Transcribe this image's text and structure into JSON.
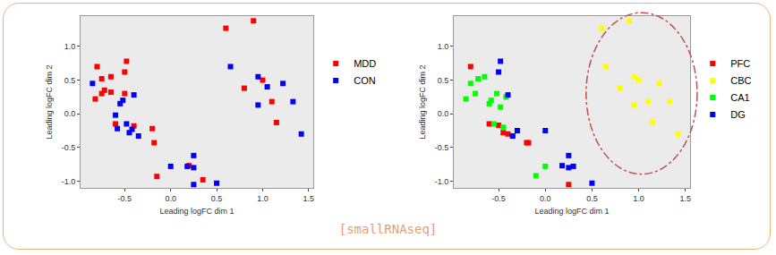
{
  "chart_data": [
    {
      "type": "scatter",
      "x_label": "Leading logFC dim 1",
      "y_label": "Leading logFC dim 2",
      "xlim": [
        -0.98,
        1.55
      ],
      "ylim": [
        -1.1,
        1.45
      ],
      "xticks": [
        {
          "value": -0.5,
          "label": "-0.5"
        },
        {
          "value": 0,
          "label": "0.0"
        },
        {
          "value": 0.5,
          "label": "0.5"
        },
        {
          "value": 1,
          "label": "1.0"
        },
        {
          "value": 1.5,
          "label": "1.5"
        }
      ],
      "yticks": [
        {
          "value": -1,
          "label": "-1.0"
        },
        {
          "value": -0.5,
          "label": "-0.5"
        },
        {
          "value": 0,
          "label": "0.0"
        },
        {
          "value": 0.5,
          "label": "0.5"
        },
        {
          "value": 1,
          "label": "1.0"
        }
      ],
      "grid": false,
      "legend": "right",
      "marker": "square",
      "series": [
        {
          "name": "MDD",
          "color": "#ff0000",
          "x": [
            -0.8,
            -0.82,
            -0.75,
            -0.72,
            -0.75,
            -0.65,
            -0.65,
            -0.6,
            -0.5,
            -0.48,
            -0.5,
            -0.4,
            -0.2,
            -0.18,
            -0.15,
            0.2,
            0.35,
            0.6,
            0.8,
            0.9,
            1.0,
            1.1,
            1.15
          ],
          "y": [
            0.7,
            0.22,
            0.3,
            0.35,
            0.52,
            0.55,
            0.32,
            -0.15,
            0.62,
            0.78,
            0.3,
            -0.18,
            -0.22,
            -0.43,
            -0.93,
            -0.77,
            -0.98,
            1.27,
            0.38,
            1.38,
            0.5,
            0.18,
            -0.13
          ]
        },
        {
          "name": "CON",
          "color": "#0000ff",
          "x": [
            -0.85,
            -0.6,
            -0.58,
            -0.55,
            -0.52,
            -0.48,
            -0.45,
            -0.42,
            -0.4,
            -0.35,
            0.0,
            0.18,
            0.25,
            0.25,
            0.25,
            0.5,
            0.65,
            0.95,
            0.95,
            1.05,
            1.22,
            1.33,
            1.42
          ],
          "y": [
            0.45,
            -0.02,
            -0.22,
            0.15,
            0.2,
            -0.15,
            -0.28,
            -0.23,
            0.28,
            -0.33,
            -0.78,
            -0.78,
            -0.8,
            -0.62,
            -1.05,
            -1.03,
            0.7,
            0.13,
            0.55,
            0.4,
            0.45,
            0.18,
            -0.3
          ]
        }
      ]
    },
    {
      "type": "scatter",
      "x_label": "Leading logFC dim 1",
      "y_label": "Leading logFC dim 2",
      "xlim": [
        -0.98,
        1.55
      ],
      "ylim": [
        -1.1,
        1.45
      ],
      "xticks": [
        {
          "value": -0.5,
          "label": "-0.5"
        },
        {
          "value": 0,
          "label": "0.0"
        },
        {
          "value": 0.5,
          "label": "0.5"
        },
        {
          "value": 1,
          "label": "1.0"
        },
        {
          "value": 1.5,
          "label": "1.5"
        }
      ],
      "yticks": [
        {
          "value": -1,
          "label": "-1.0"
        },
        {
          "value": -0.5,
          "label": "-0.5"
        },
        {
          "value": 0,
          "label": "0.0"
        },
        {
          "value": 0.5,
          "label": "0.5"
        },
        {
          "value": 1,
          "label": "1.0"
        }
      ],
      "grid": false,
      "legend": "right",
      "marker": "square",
      "series": [
        {
          "name": "PFC",
          "color": "#ff0000",
          "x": [
            -0.8,
            -0.6,
            -0.5,
            -0.45,
            -0.4,
            -0.35,
            -0.2,
            -0.18,
            0.25
          ],
          "y": [
            0.7,
            -0.15,
            -0.17,
            -0.28,
            -0.3,
            -0.33,
            -0.43,
            -0.43,
            -1.05
          ]
        },
        {
          "name": "CBC",
          "color": "#ffff00",
          "x": [
            0.6,
            0.65,
            0.8,
            0.9,
            0.95,
            0.95,
            1.0,
            1.1,
            1.15,
            1.22,
            1.33,
            1.42
          ],
          "y": [
            1.27,
            0.7,
            0.38,
            1.38,
            0.13,
            0.55,
            0.5,
            0.18,
            -0.13,
            0.45,
            0.18,
            -0.3
          ]
        },
        {
          "name": "CA1",
          "color": "#00ff00",
          "x": [
            -0.85,
            -0.8,
            -0.75,
            -0.72,
            -0.65,
            -0.6,
            -0.58,
            -0.55,
            -0.52,
            -0.48,
            -0.45,
            -0.42,
            -0.1,
            0.0
          ],
          "y": [
            0.22,
            0.45,
            0.3,
            0.52,
            0.55,
            0.15,
            0.2,
            -0.15,
            0.3,
            0.1,
            -0.2,
            0.25,
            -0.92,
            -0.78
          ]
        },
        {
          "name": "DG",
          "color": "#0000ff",
          "x": [
            -0.5,
            -0.48,
            -0.4,
            -0.35,
            -0.3,
            0.0,
            0.18,
            0.25,
            0.25,
            0.3,
            0.5
          ],
          "y": [
            0.62,
            0.78,
            0.28,
            -0.33,
            -0.25,
            -0.25,
            -0.77,
            -0.8,
            -0.62,
            -0.78,
            -1.03
          ]
        }
      ]
    }
  ],
  "caption": "[smallRNAseq]"
}
